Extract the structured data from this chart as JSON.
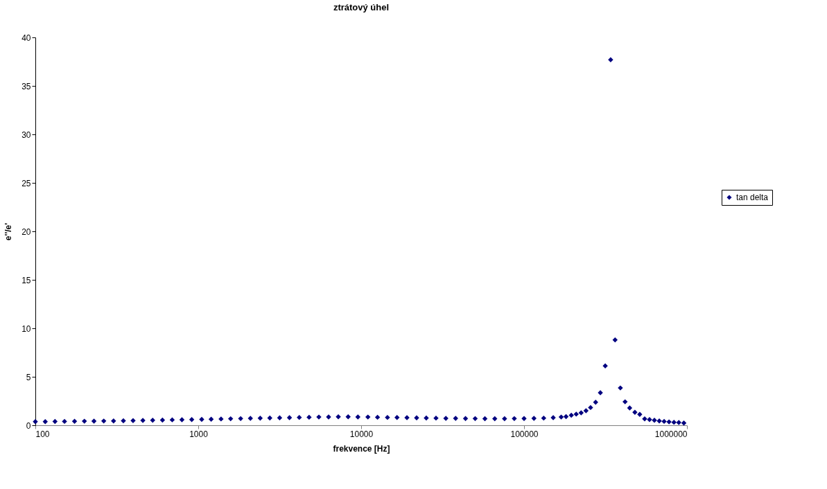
{
  "chart_data": {
    "type": "scatter",
    "title": "ztrátový úhel",
    "xlabel": "frekvence [Hz]",
    "ylabel": "e''/e'",
    "x": [
      100,
      115,
      132,
      151,
      174,
      200,
      229,
      263,
      302,
      347,
      398,
      457,
      525,
      603,
      692,
      794,
      912,
      1050,
      1200,
      1380,
      1580,
      1820,
      2090,
      2400,
      2750,
      3160,
      3630,
      4170,
      4790,
      5500,
      6310,
      7240,
      8320,
      9550,
      11000,
      12600,
      14500,
      16600,
      19100,
      21900,
      25100,
      28800,
      33100,
      38000,
      43700,
      50100,
      57500,
      66100,
      75900,
      87100,
      100000,
      115000,
      132000,
      151000,
      169000,
      181000,
      195000,
      209000,
      224000,
      240000,
      256000,
      275000,
      294000,
      315000,
      340000,
      362000,
      390000,
      417000,
      445000,
      479000,
      513000,
      550000,
      589000,
      631000,
      676000,
      724000,
      776000,
      832000,
      891000,
      957000
    ],
    "series": [
      {
        "name": "tan delta",
        "color": "#000080",
        "values": [
          0.37,
          0.38,
          0.39,
          0.4,
          0.41,
          0.42,
          0.43,
          0.44,
          0.45,
          0.47,
          0.48,
          0.5,
          0.52,
          0.54,
          0.56,
          0.57,
          0.59,
          0.61,
          0.63,
          0.65,
          0.67,
          0.69,
          0.71,
          0.73,
          0.75,
          0.77,
          0.79,
          0.81,
          0.83,
          0.85,
          0.86,
          0.87,
          0.87,
          0.86,
          0.85,
          0.83,
          0.81,
          0.8,
          0.78,
          0.77,
          0.75,
          0.74,
          0.72,
          0.71,
          0.7,
          0.69,
          0.68,
          0.68,
          0.68,
          0.69,
          0.7,
          0.71,
          0.74,
          0.78,
          0.85,
          0.89,
          1.03,
          1.15,
          1.29,
          1.5,
          1.83,
          2.37,
          3.36,
          6.13,
          37.7,
          8.8,
          3.85,
          2.42,
          1.78,
          1.34,
          1.13,
          0.66,
          0.59,
          0.52,
          0.45,
          0.4,
          0.35,
          0.31,
          0.28,
          0.23
        ]
      }
    ],
    "xlim": [
      100,
      1000000
    ],
    "xticks": [
      100,
      1000,
      10000,
      100000,
      1000000
    ],
    "log": "x",
    "ylim": [
      0,
      40
    ],
    "yticks": [
      0,
      5,
      10,
      15,
      20,
      25,
      30,
      35,
      40
    ],
    "marker": "diamond",
    "legend": "right",
    "grid": false
  }
}
